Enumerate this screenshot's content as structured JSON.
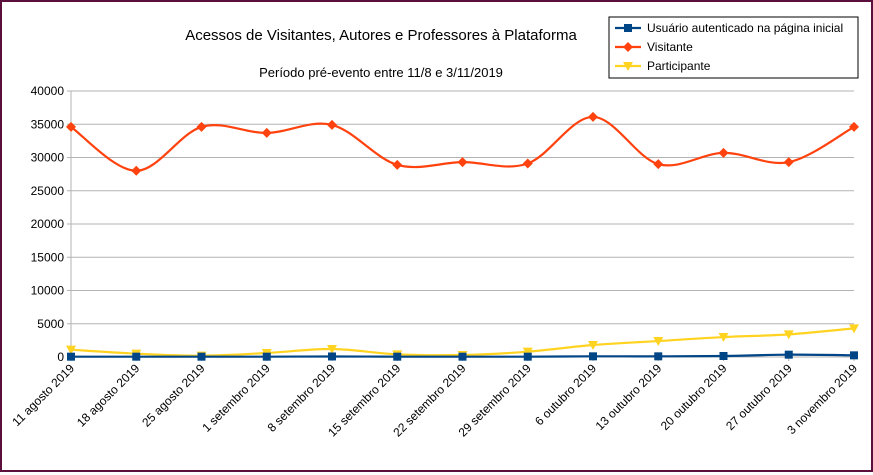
{
  "chart_data": {
    "type": "line",
    "title": "Acessos de Visitantes, Autores e Professores à Plataforma",
    "subtitle": "Período pré-evento entre 11/8 e 3/11/2019",
    "categories": [
      "11 agosto 2019",
      "18 agosto 2019",
      "25 agosto 2019",
      "1 setembro 2019",
      "8 setembro 2019",
      "15 setembro 2019",
      "22 setembro 2019",
      "29 setembro 2019",
      "6 outubro 2019",
      "13 outubro 2019",
      "20 outubro 2019",
      "27 outubro 2019",
      "3 novembro 2019"
    ],
    "ylim": [
      0,
      40000
    ],
    "yticks": [
      0,
      5000,
      10000,
      15000,
      20000,
      25000,
      30000,
      35000,
      40000
    ],
    "ytick_labels": [
      "0",
      "5000",
      "10000",
      "15000",
      "20000",
      "25000",
      "30000",
      "35000",
      "40000"
    ],
    "grid": true,
    "legend_position": "top-right",
    "series": [
      {
        "name": "Usuário autenticado na página inicial",
        "color": "#004586",
        "marker": "square",
        "values": [
          50,
          50,
          50,
          50,
          80,
          50,
          50,
          50,
          100,
          100,
          150,
          350,
          250
        ]
      },
      {
        "name": "Visitante",
        "color": "#ff420e",
        "marker": "diamond",
        "values": [
          34600,
          28000,
          34600,
          33700,
          34900,
          28900,
          29300,
          29100,
          36100,
          29000,
          30700,
          29300,
          34600
        ]
      },
      {
        "name": "Participante",
        "color": "#ffd320",
        "marker": "triangle-down",
        "values": [
          1100,
          500,
          200,
          600,
          1200,
          400,
          300,
          800,
          1800,
          2400,
          3000,
          3400,
          4300
        ]
      }
    ]
  }
}
